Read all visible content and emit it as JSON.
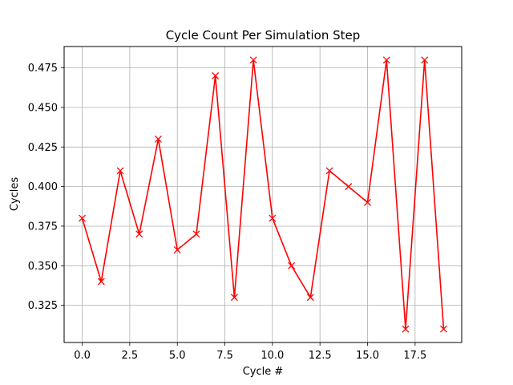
{
  "chart_data": {
    "type": "line",
    "title": "Cycle Count Per Simulation Step",
    "xlabel": "Cycle #",
    "ylabel": "Cycles",
    "xlim": [
      -0.95,
      19.95
    ],
    "ylim": [
      0.3015,
      0.4885
    ],
    "x_ticks": [
      0.0,
      2.5,
      5.0,
      7.5,
      10.0,
      12.5,
      15.0,
      17.5
    ],
    "x_tick_labels": [
      "0.0",
      "2.5",
      "5.0",
      "7.5",
      "10.0",
      "12.5",
      "15.0",
      "17.5"
    ],
    "y_ticks": [
      0.325,
      0.35,
      0.375,
      0.4,
      0.425,
      0.45,
      0.475
    ],
    "y_tick_labels": [
      "0.325",
      "0.350",
      "0.375",
      "0.400",
      "0.425",
      "0.450",
      "0.475"
    ],
    "grid": true,
    "marker": "x",
    "series": [
      {
        "color": "#ff0000",
        "x": [
          0,
          1,
          2,
          3,
          4,
          5,
          6,
          7,
          8,
          9,
          10,
          11,
          12,
          13,
          14,
          15,
          16,
          17,
          18,
          19
        ],
        "values": [
          0.38,
          0.34,
          0.41,
          0.37,
          0.43,
          0.36,
          0.37,
          0.47,
          0.33,
          0.48,
          0.38,
          0.35,
          0.33,
          0.41,
          0.4,
          0.39,
          0.48,
          0.31,
          0.48,
          0.31
        ]
      }
    ]
  }
}
